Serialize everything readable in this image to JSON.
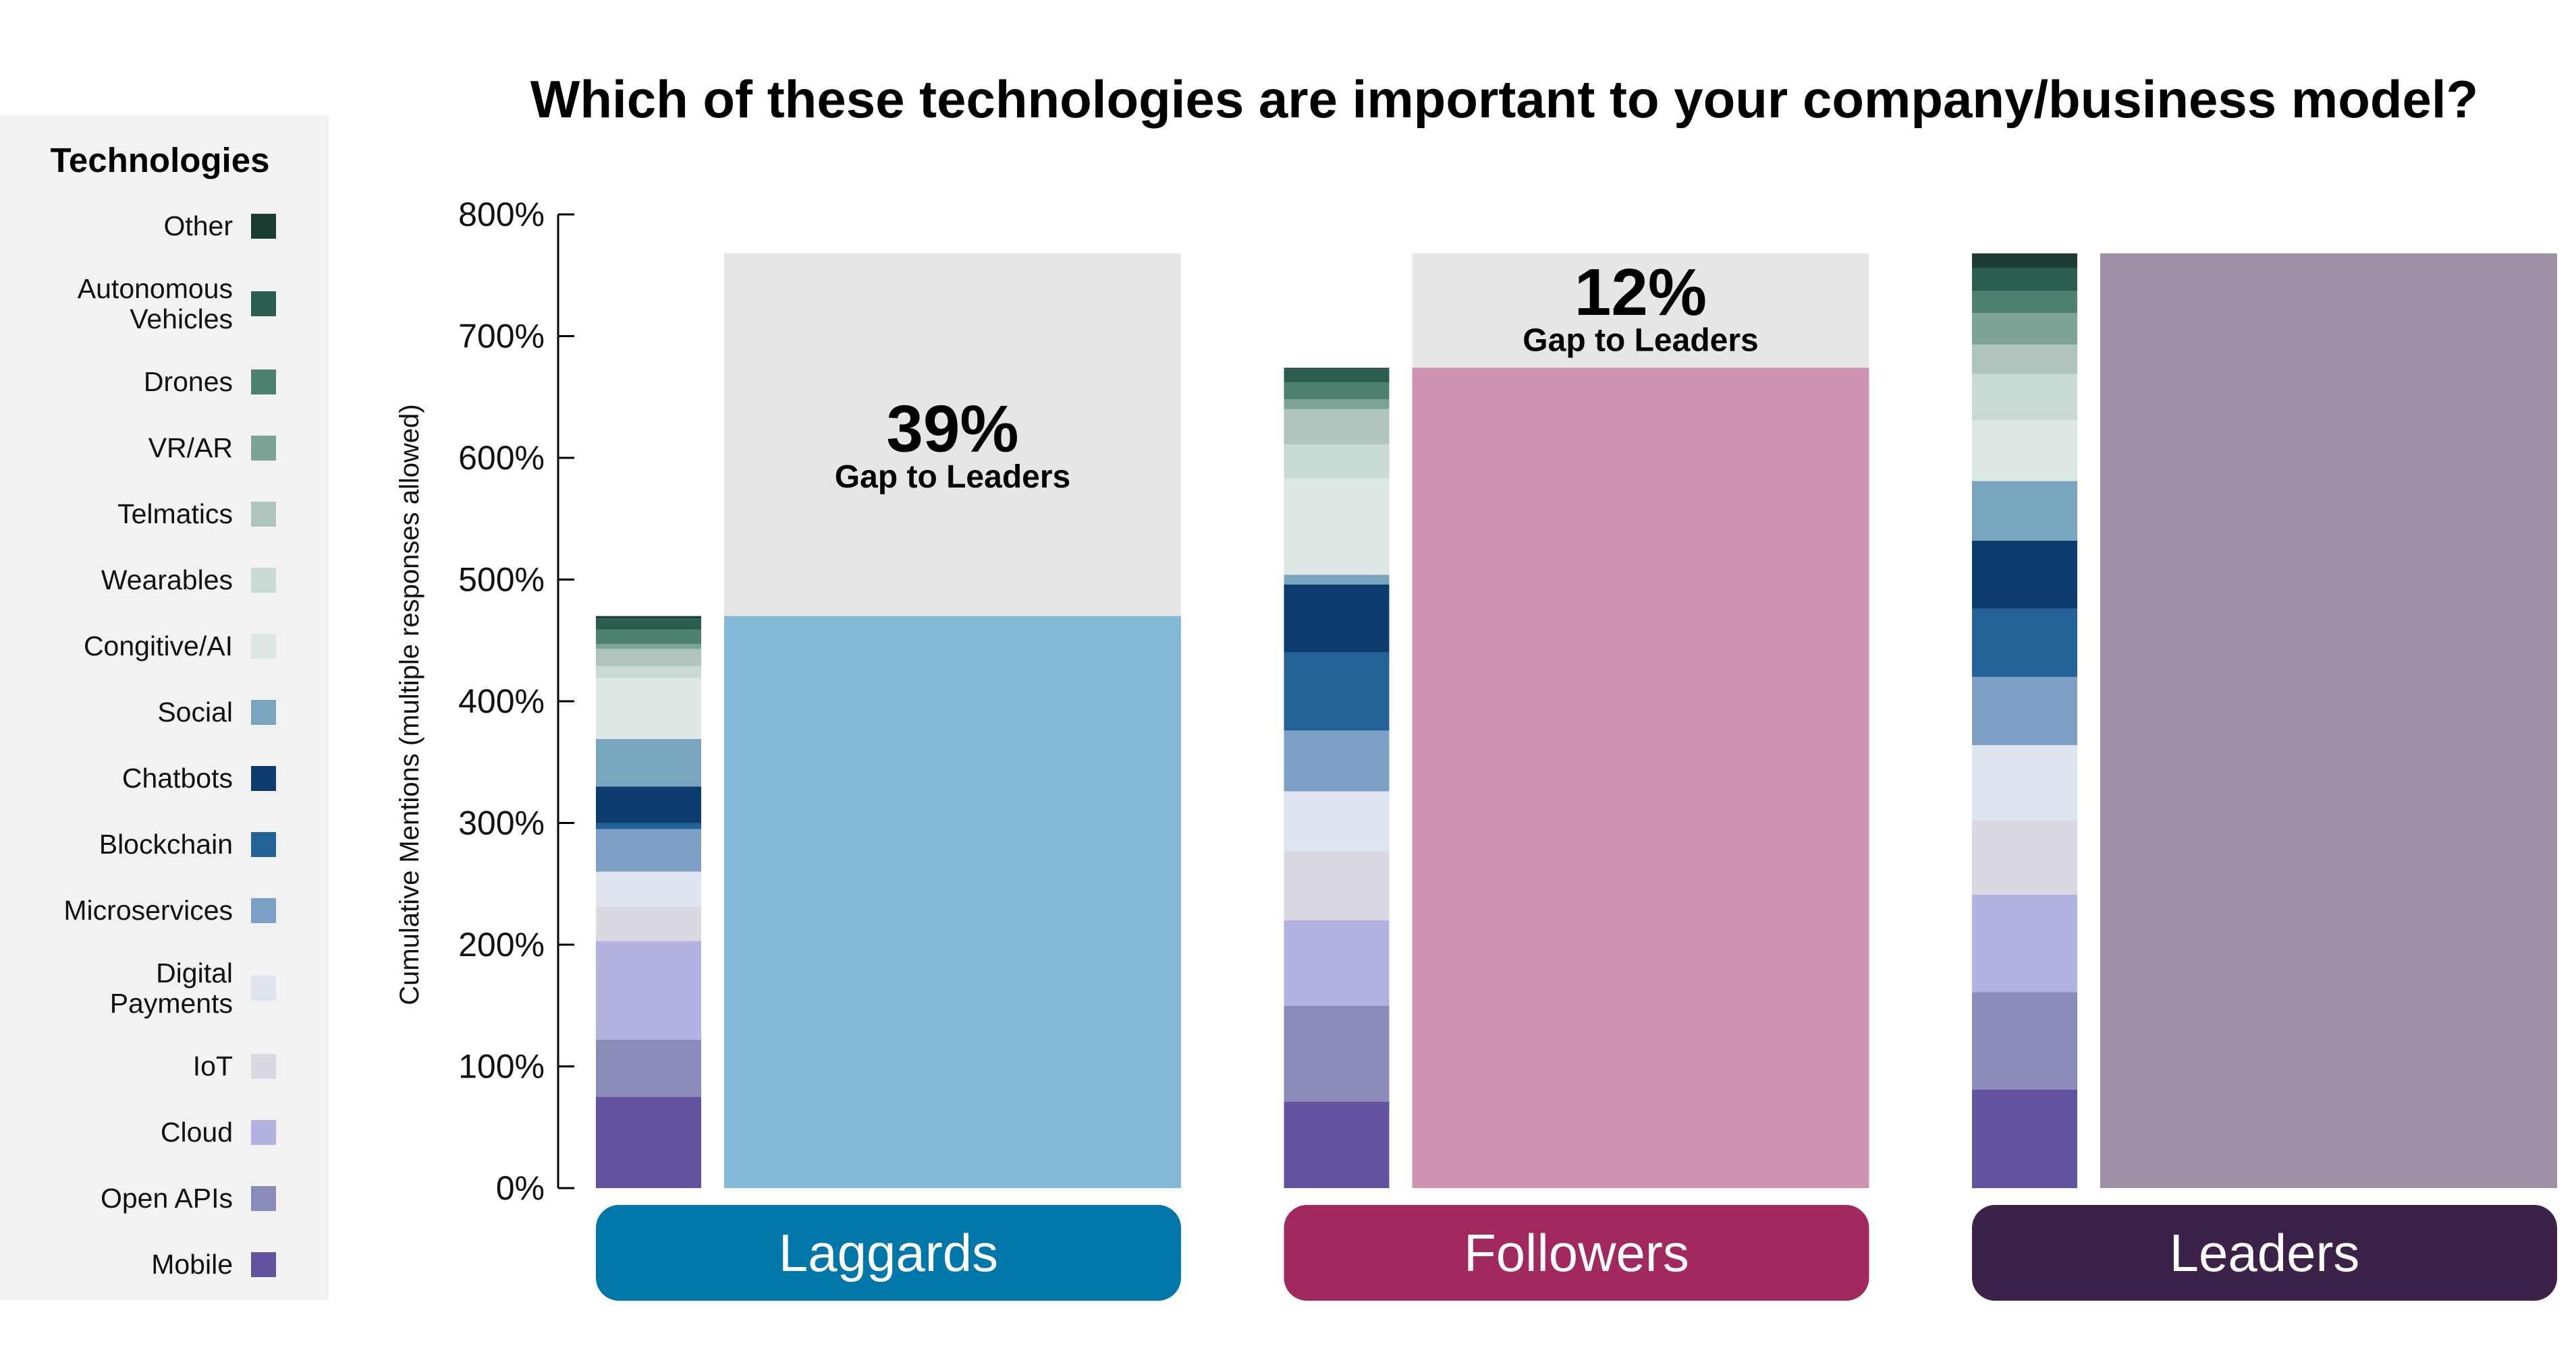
{
  "chart_data": {
    "type": "bar",
    "stacked": true,
    "title": "Which of these technologies are important to your company/business model?",
    "ylabel": "Cumulative Mentions (multiple responses allowed)",
    "ylim": [
      0,
      800
    ],
    "yticks": [
      "0%",
      "100%",
      "200%",
      "300%",
      "400%",
      "500%",
      "600%",
      "700%",
      "800%"
    ],
    "grid": false,
    "legend": {
      "title": "Technologies",
      "position": "left"
    },
    "categories": [
      "Laggards",
      "Followers",
      "Leaders"
    ],
    "category_colors": [
      "#0077a8",
      "#a1295f",
      "#3c2249"
    ],
    "totals": [
      470,
      674,
      768
    ],
    "total_colors": [
      "#82b9d4",
      "#d193b2",
      "#9e90a5"
    ],
    "gap_color": "#e6e6e6",
    "gap_annotations": [
      {
        "value": "39%",
        "label": "Gap to Leaders"
      },
      {
        "value": "12%",
        "label": "Gap to Leaders"
      },
      null
    ],
    "series": [
      {
        "name": "Other",
        "color": "#1b3b33",
        "values": [
          2,
          1,
          12
        ]
      },
      {
        "name": "Autonomous Vehicles",
        "color": "#2b5e50",
        "values": [
          9,
          11,
          19
        ]
      },
      {
        "name": "Drones",
        "color": "#4d8271",
        "values": [
          12,
          14,
          18
        ]
      },
      {
        "name": "VR/AR",
        "color": "#7ba396",
        "values": [
          4,
          8,
          26
        ]
      },
      {
        "name": "Telmatics",
        "color": "#afc5bc",
        "values": [
          14,
          29,
          24
        ]
      },
      {
        "name": "Wearables",
        "color": "#c9dad2",
        "values": [
          10,
          28,
          38
        ]
      },
      {
        "name": "Congitive/AI",
        "color": "#dde8e4",
        "values": [
          50,
          79,
          50
        ]
      },
      {
        "name": "Social",
        "color": "#79a6be",
        "values": [
          39,
          8,
          49
        ]
      },
      {
        "name": "Chatbots",
        "color": "#0c3b6e",
        "values": [
          30,
          56,
          56
        ]
      },
      {
        "name": "Blockchain",
        "color": "#246197",
        "values": [
          5,
          64,
          56
        ]
      },
      {
        "name": "Microservices",
        "color": "#7ea0c7",
        "values": [
          35,
          50,
          56
        ]
      },
      {
        "name": "Digital Payments",
        "color": "#dee5ee",
        "values": [
          29,
          49,
          62
        ]
      },
      {
        "name": "IoT",
        "color": "#dad8e1",
        "values": [
          28,
          57,
          61
        ]
      },
      {
        "name": "Cloud",
        "color": "#b2b3e0",
        "values": [
          81,
          70,
          80
        ]
      },
      {
        "name": "Open APIs",
        "color": "#898bb8",
        "values": [
          47,
          79,
          80
        ]
      },
      {
        "name": "Mobile",
        "color": "#63539e",
        "values": [
          75,
          71,
          81
        ]
      }
    ]
  }
}
